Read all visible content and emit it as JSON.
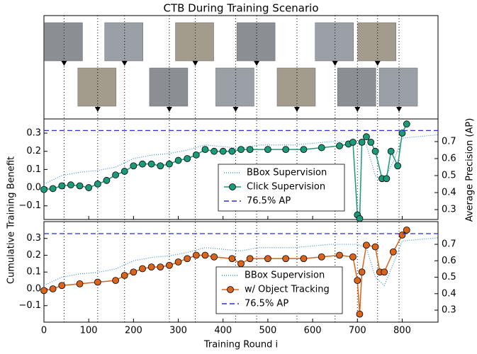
{
  "chart_data": {
    "type": "line",
    "title": "CTB During Training Scenario",
    "xlabel": "Training Round i",
    "ylabel": "Cumulative Training Benefit",
    "y2label": "Average Precision (AP)",
    "xlim": [
      0,
      880
    ],
    "xticks": [
      0,
      100,
      200,
      300,
      400,
      500,
      600,
      700,
      800
    ],
    "vlines": [
      45,
      120,
      180,
      280,
      338,
      428,
      475,
      565,
      650,
      700,
      745,
      793
    ],
    "panels": [
      {
        "ylim": [
          -0.175,
          0.378
        ],
        "yticks": [
          {
            "value": -0.1,
            "label": "−0.1"
          },
          {
            "value": 0,
            "label": "0.0"
          },
          0.1,
          0.2,
          0.3
        ],
        "y2lim": [
          0.242,
          0.833
        ],
        "y2ticks": [
          0.3,
          0.4,
          0.5,
          0.6,
          0.7
        ],
        "series": [
          {
            "name": "BBox Supervision",
            "color": "#3a8fd0",
            "style": "dotted",
            "axis": "y2",
            "x": [
              0,
              40,
              80,
              120,
              160,
              200,
              240,
              280,
              320,
              360,
              400,
              440,
              480,
              520,
              560,
              600,
              640,
              680,
              700,
              720,
              740,
              760,
              780,
              800,
              840,
              880
            ],
            "values": [
              0.45,
              0.5,
              0.52,
              0.53,
              0.55,
              0.6,
              0.62,
              0.63,
              0.65,
              0.68,
              0.67,
              0.66,
              0.68,
              0.68,
              0.68,
              0.69,
              0.7,
              0.7,
              0.7,
              0.68,
              0.5,
              0.48,
              0.58,
              0.72,
              0.73,
              0.74
            ]
          },
          {
            "name": "Click Supervision",
            "color": "#1a9a78",
            "style": "solid",
            "markers": true,
            "axis": "y",
            "x": [
              0,
              20,
              40,
              60,
              80,
              100,
              120,
              140,
              160,
              180,
              200,
              220,
              240,
              260,
              280,
              300,
              320,
              340,
              360,
              380,
              400,
              420,
              440,
              460,
              500,
              540,
              580,
              620,
              660,
              680,
              690,
              700,
              705,
              710,
              720,
              730,
              740,
              755,
              765,
              775,
              790,
              800,
              810
            ],
            "values": [
              -0.01,
              -0.005,
              0.01,
              0.015,
              0.01,
              0.0,
              0.02,
              0.04,
              0.07,
              0.09,
              0.12,
              0.13,
              0.13,
              0.12,
              0.13,
              0.15,
              0.16,
              0.18,
              0.21,
              0.2,
              0.2,
              0.2,
              0.21,
              0.21,
              0.21,
              0.21,
              0.21,
              0.22,
              0.23,
              0.24,
              0.25,
              -0.15,
              -0.17,
              0.25,
              0.28,
              0.25,
              0.2,
              0.05,
              0.05,
              0.2,
              0.12,
              0.3,
              0.35
            ]
          },
          {
            "name": "76.5% AP",
            "color": "#2b2bd6",
            "style": "dashed",
            "axis": "y2",
            "x": [
              0,
              880
            ],
            "values": [
              0.765,
              0.765
            ]
          }
        ]
      },
      {
        "ylim": [
          -0.198,
          0.4
        ],
        "yticks": [
          {
            "value": -0.1,
            "label": "−0.1"
          },
          {
            "value": 0,
            "label": "0.0"
          },
          0.1,
          0.2,
          0.3
        ],
        "y2lim": [
          0.227,
          0.838
        ],
        "y2ticks": [
          0.3,
          0.4,
          0.5,
          0.6,
          0.7
        ],
        "series": [
          {
            "name": "BBox Supervision",
            "color": "#3a8fd0",
            "style": "dotted",
            "axis": "y2",
            "x": [
              0,
              40,
              80,
              120,
              160,
              200,
              240,
              280,
              320,
              360,
              400,
              440,
              480,
              520,
              560,
              600,
              640,
              680,
              700,
              720,
              740,
              760,
              780,
              800,
              840,
              880
            ],
            "values": [
              0.45,
              0.5,
              0.52,
              0.53,
              0.55,
              0.6,
              0.62,
              0.63,
              0.65,
              0.68,
              0.67,
              0.66,
              0.68,
              0.68,
              0.68,
              0.69,
              0.7,
              0.7,
              0.7,
              0.68,
              0.5,
              0.45,
              0.58,
              0.72,
              0.73,
              0.74
            ]
          },
          {
            "name": "w/ Object Tracking",
            "color": "#d9651a",
            "style": "solid",
            "markers": true,
            "axis": "y",
            "x": [
              0,
              20,
              40,
              80,
              120,
              160,
              180,
              200,
              220,
              240,
              260,
              280,
              300,
              320,
              340,
              360,
              380,
              420,
              440,
              460,
              500,
              540,
              580,
              620,
              660,
              690,
              700,
              705,
              710,
              720,
              740,
              750,
              760,
              780,
              800,
              810
            ],
            "values": [
              -0.01,
              0.0,
              0.02,
              0.03,
              0.04,
              0.05,
              0.08,
              0.1,
              0.12,
              0.13,
              0.13,
              0.14,
              0.16,
              0.18,
              0.2,
              0.2,
              0.19,
              0.18,
              0.15,
              0.18,
              0.18,
              0.18,
              0.18,
              0.19,
              0.2,
              0.19,
              0.05,
              -0.15,
              0.1,
              0.26,
              0.25,
              0.1,
              0.1,
              0.22,
              0.32,
              0.35
            ]
          },
          {
            "name": "76.5% AP",
            "color": "#2b2bd6",
            "style": "dashed",
            "axis": "y2",
            "x": [
              0,
              880
            ],
            "values": [
              0.765,
              0.765
            ]
          }
        ]
      }
    ]
  }
}
